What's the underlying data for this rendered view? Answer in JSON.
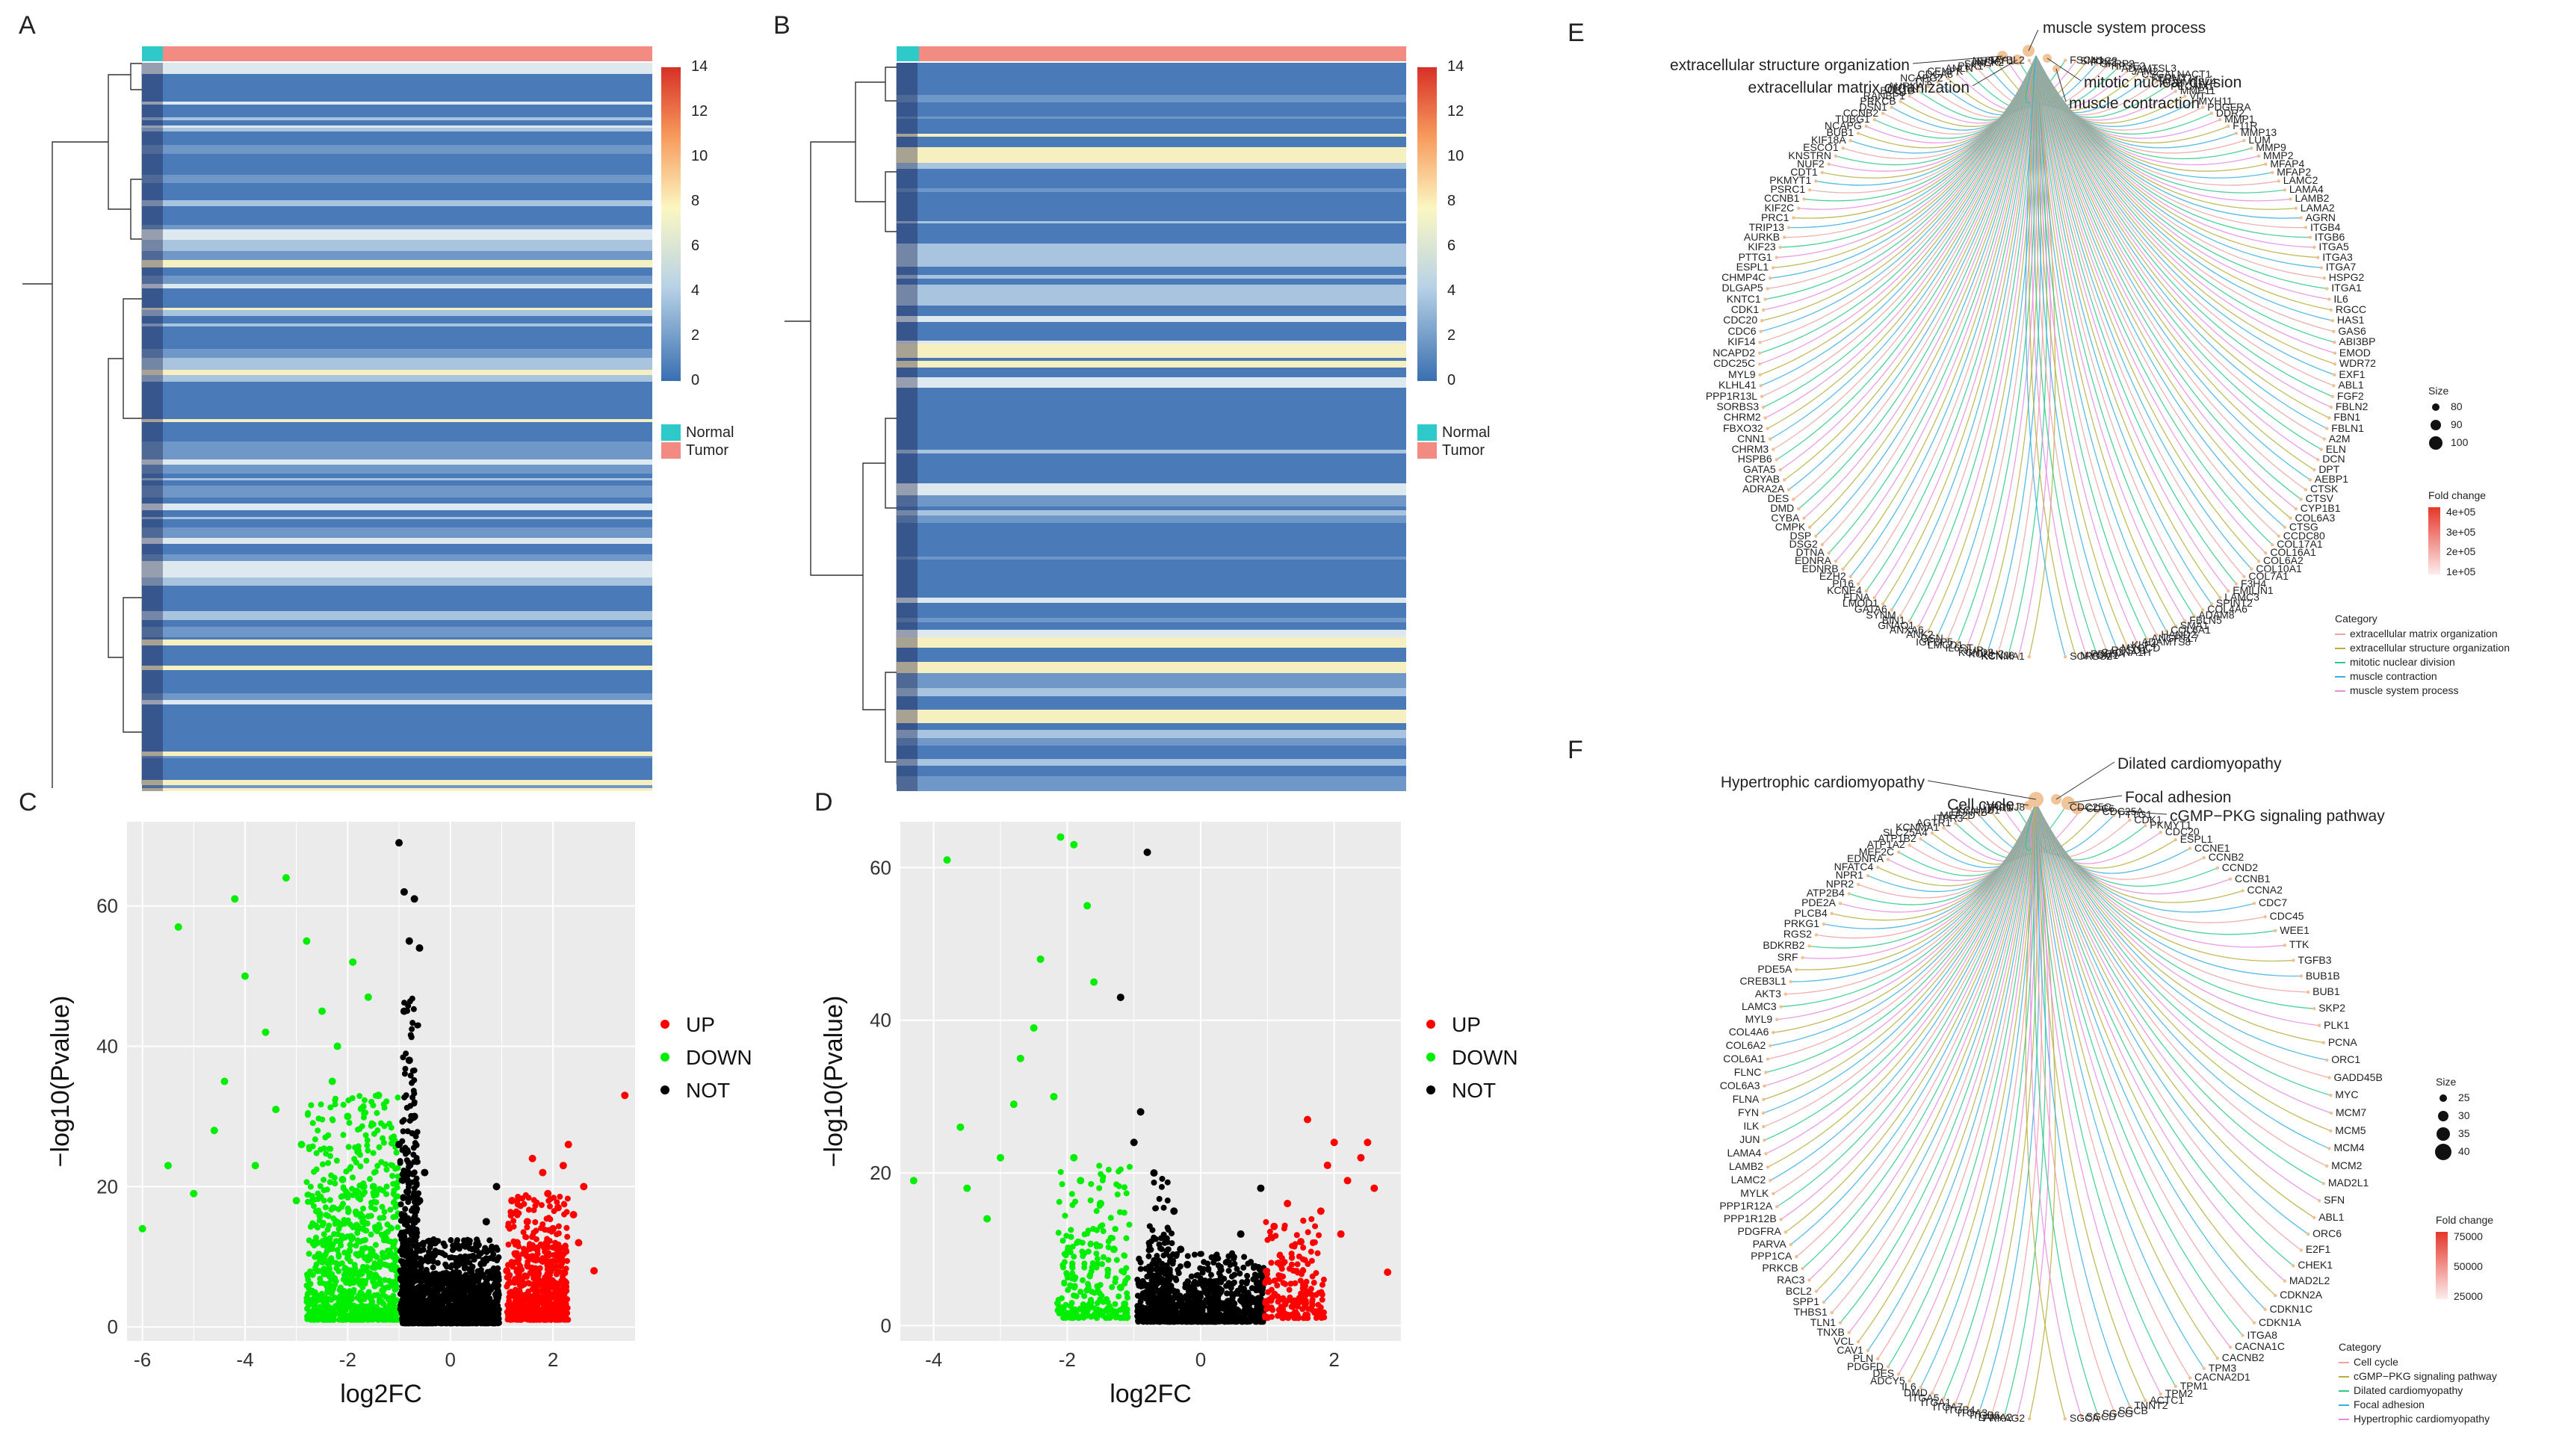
{
  "panel_labels": {
    "a": "A",
    "b": "B",
    "c": "C",
    "d": "D",
    "e": "E",
    "f": "F"
  },
  "heatmap": {
    "colorbar_ticks": [
      "14",
      "12",
      "10",
      "8",
      "6",
      "4",
      "2",
      "0"
    ],
    "colorbar_range": [
      0,
      14
    ],
    "legend": [
      {
        "label": "Normal",
        "color": "#2ec9c9"
      },
      {
        "label": "Tumor",
        "color": "#f28b82"
      }
    ],
    "colors": {
      "low": "#3a6fb0",
      "mid": "#fbf7c2",
      "high": "#d73027",
      "normal": "#2ec9c9",
      "tumor": "#f28b82"
    }
  },
  "volcano_legend": [
    {
      "label": "UP",
      "color": "#ff0000"
    },
    {
      "label": "DOWN",
      "color": "#00ee00"
    },
    {
      "label": "NOT",
      "color": "#000000"
    }
  ],
  "chart_data": [
    {
      "type": "scatter",
      "panel": "C",
      "title": "",
      "xlabel": "log2FC",
      "ylabel": "−log10(Pvalue)",
      "xlim": [
        -6.3,
        3.6
      ],
      "ylim": [
        -2,
        72
      ],
      "xticks": [
        "-6",
        "-4",
        "-2",
        "0",
        "2"
      ],
      "xtick_values": [
        -6,
        -4,
        -2,
        0,
        2
      ],
      "yticks": [
        "0",
        "20",
        "40",
        "60"
      ],
      "ytick_values": [
        0,
        20,
        40,
        60
      ],
      "series": [
        {
          "name": "UP",
          "points": [
            [
              3.4,
              33
            ],
            [
              2.2,
              23
            ],
            [
              1.9,
              19
            ],
            [
              2.5,
              12
            ],
            [
              2.0,
              14
            ],
            [
              1.6,
              10
            ],
            [
              1.4,
              6
            ],
            [
              2.8,
              8
            ],
            [
              2.3,
              26
            ],
            [
              1.8,
              22
            ],
            [
              1.2,
              18
            ],
            [
              1.5,
              15
            ],
            [
              1.3,
              12
            ],
            [
              1.1,
              8
            ],
            [
              1.7,
              5
            ],
            [
              2.6,
              20
            ],
            [
              2.1,
              17
            ],
            [
              1.9,
              9
            ],
            [
              1.6,
              24
            ],
            [
              2.4,
              16
            ]
          ]
        },
        {
          "name": "DOWN",
          "points": [
            [
              -6.0,
              14
            ],
            [
              -5.3,
              57
            ],
            [
              -5.0,
              19
            ],
            [
              -4.2,
              61
            ],
            [
              -4.0,
              50
            ],
            [
              -3.6,
              42
            ],
            [
              -3.2,
              64
            ],
            [
              -2.8,
              55
            ],
            [
              -2.5,
              45
            ],
            [
              -2.2,
              40
            ],
            [
              -2.0,
              30
            ],
            [
              -1.8,
              25
            ],
            [
              -1.5,
              20
            ],
            [
              -1.3,
              10
            ],
            [
              -4.6,
              28
            ],
            [
              -3.8,
              23
            ],
            [
              -3.0,
              18
            ],
            [
              -2.6,
              12
            ],
            [
              -1.9,
              52
            ],
            [
              -1.6,
              47
            ],
            [
              -2.3,
              35
            ],
            [
              -1.7,
              15
            ],
            [
              -1.2,
              4
            ],
            [
              -5.5,
              23
            ],
            [
              -4.4,
              35
            ],
            [
              -3.4,
              31
            ],
            [
              -2.9,
              26
            ],
            [
              -2.1,
              21
            ],
            [
              -1.4,
              33
            ],
            [
              -1.1,
              2
            ]
          ]
        },
        {
          "name": "NOT",
          "points": [
            [
              -1.0,
              69
            ],
            [
              -0.9,
              62
            ],
            [
              -0.7,
              61
            ],
            [
              -0.8,
              55
            ],
            [
              -0.6,
              54
            ],
            [
              -0.9,
              45
            ],
            [
              -0.8,
              38
            ],
            [
              -0.7,
              30
            ],
            [
              -0.5,
              22
            ],
            [
              -0.3,
              12
            ],
            [
              0.0,
              3
            ],
            [
              0.4,
              8
            ],
            [
              0.7,
              15
            ],
            [
              0.9,
              20
            ],
            [
              0.5,
              2
            ],
            [
              -0.2,
              1
            ],
            [
              0.2,
              5
            ],
            [
              -0.6,
              18
            ],
            [
              -1.0,
              26
            ],
            [
              0.8,
              11
            ]
          ]
        }
      ]
    },
    {
      "type": "scatter",
      "panel": "D",
      "title": "",
      "xlabel": "log2FC",
      "ylabel": "−log10(Pvalue)",
      "xlim": [
        -4.5,
        3.0
      ],
      "ylim": [
        -2,
        66
      ],
      "xticks": [
        "-4",
        "-2",
        "0",
        "2"
      ],
      "xtick_values": [
        -4,
        -2,
        0,
        2
      ],
      "yticks": [
        "0",
        "20",
        "40",
        "60"
      ],
      "ytick_values": [
        0,
        20,
        40,
        60
      ],
      "series": [
        {
          "name": "UP",
          "points": [
            [
              2.8,
              7
            ],
            [
              2.6,
              18
            ],
            [
              2.4,
              22
            ],
            [
              2.2,
              19
            ],
            [
              2.0,
              24
            ],
            [
              1.8,
              15
            ],
            [
              1.5,
              11
            ],
            [
              1.2,
              8
            ],
            [
              2.1,
              12
            ],
            [
              1.6,
              27
            ],
            [
              1.3,
              16
            ],
            [
              1.0,
              6
            ],
            [
              2.5,
              24
            ],
            [
              1.9,
              21
            ],
            [
              1.1,
              13
            ]
          ]
        },
        {
          "name": "DOWN",
          "points": [
            [
              -4.3,
              19
            ],
            [
              -3.8,
              61
            ],
            [
              -3.5,
              18
            ],
            [
              -3.0,
              22
            ],
            [
              -2.7,
              35
            ],
            [
              -2.4,
              48
            ],
            [
              -2.1,
              64
            ],
            [
              -1.9,
              63
            ],
            [
              -1.7,
              55
            ],
            [
              -1.6,
              45
            ],
            [
              -2.2,
              30
            ],
            [
              -1.9,
              22
            ],
            [
              -1.5,
              16
            ],
            [
              -1.3,
              10
            ],
            [
              -1.2,
              5
            ],
            [
              -3.6,
              26
            ],
            [
              -3.2,
              14
            ],
            [
              -2.8,
              29
            ],
            [
              -2.5,
              39
            ],
            [
              -1.8,
              19
            ]
          ]
        },
        {
          "name": "NOT",
          "points": [
            [
              -0.8,
              62
            ],
            [
              -1.2,
              43
            ],
            [
              -0.9,
              28
            ],
            [
              -0.7,
              20
            ],
            [
              -0.4,
              15
            ],
            [
              -0.2,
              8
            ],
            [
              0.0,
              3
            ],
            [
              0.3,
              6
            ],
            [
              0.6,
              12
            ],
            [
              0.9,
              18
            ],
            [
              0.4,
              1
            ],
            [
              -0.5,
              2
            ],
            [
              -1.0,
              24
            ],
            [
              0.7,
              4
            ],
            [
              -0.3,
              10
            ]
          ]
        }
      ]
    }
  ],
  "network_e": {
    "categories": [
      "extracellular structure organization",
      "muscle system process",
      "extracellular matrix organization",
      "mitotic nuclear division",
      "muscle contraction"
    ],
    "genes_left": [
      "MYBL2",
      "NUSAP1",
      "NEK2",
      "SIRT7",
      "PLK1",
      "ANLN",
      "CENPK",
      "CDCA8",
      "NCAPG2",
      "TTK",
      "AURKA",
      "BUB1B",
      "RANBP1",
      "PRKCB",
      "DSN1",
      "CCNB2",
      "TUBG1",
      "NCAPG",
      "BUB1",
      "KIF18A",
      "ESCO1",
      "KNSTRN",
      "NUF2",
      "CDT1",
      "PKMYT1",
      "PSRC1",
      "CCNB1",
      "KIF2C",
      "PRC1",
      "TRIP13",
      "AURKB",
      "KIF23",
      "PTTG1",
      "ESPL1",
      "CHMP4C",
      "DLGAP5",
      "KNTC1",
      "CDK1",
      "CDC20",
      "CDC6",
      "KIF14",
      "NCAPD2",
      "CDC25C",
      "MYL9",
      "KLHL41",
      "PPP1R13L",
      "SORBS3",
      "CHRM2",
      "FBXO32",
      "CNN1",
      "CHRM3",
      "HSPB6",
      "GATA5",
      "CRYAB",
      "ADRA2A",
      "DES",
      "DMD",
      "CYBA",
      "CMPK",
      "DSP",
      "DSG2",
      "DTNA",
      "EDNRA",
      "EDNRB",
      "EZH2",
      "PI16",
      "KCNE4",
      "FLNA",
      "LMOD1",
      "GATA6",
      "SYNM",
      "BIN1",
      "GNAO1",
      "ANXA6",
      "ANK2",
      "GSN",
      "IGFBP5",
      "LMCD1",
      "IL6ST",
      "JUP",
      "KCND3",
      "KCNH2",
      "KCNJ8",
      "KCNMA1"
    ],
    "genes_right": [
      "FSCN1",
      "SMOC2",
      "PTX3",
      "SFRP2",
      "HPSE2",
      "ADAMTSL3",
      "JAM2",
      "CSGALNACT1",
      "FERMT1",
      "ADAMTSL4",
      "PECAM1",
      "MMP11",
      "VIT",
      "MYH11",
      "PDGFRA",
      "DDR2",
      "MMP1",
      "F11R",
      "MMP13",
      "LUM",
      "MMP9",
      "MMP2",
      "MFAP4",
      "MFAP2",
      "LAMC2",
      "LAMA4",
      "LAMB2",
      "LAMA2",
      "AGRN",
      "ITGB4",
      "ITGB6",
      "ITGA5",
      "ITGA3",
      "ITGA7",
      "HSPG2",
      "ITGA1",
      "IL6",
      "RGCC",
      "HAS1",
      "GAS6",
      "ABI3BP",
      "EMOD",
      "WDR72",
      "EXF1",
      "ABL1",
      "FGF2",
      "FBLN2",
      "FBN1",
      "FBLN1",
      "A2M",
      "ELN",
      "DCN",
      "DPT",
      "AEBP1",
      "CTSK",
      "CTSV",
      "CYP1B1",
      "COL6A3",
      "CTSG",
      "CCDC80",
      "COL17A1",
      "COL16A1",
      "COL6A2",
      "COL10A1",
      "COL7A1",
      "F3H4",
      "EMILIN1",
      "LAMC3",
      "SPINT2",
      "COL4A6",
      "ADAM8",
      "FBLN5",
      "SMA1",
      "COL6A1",
      "HAND2",
      "ANGPTL7",
      "ADAMTS8",
      "KLF4",
      "MYOCD",
      "RCSD1",
      "CACNA1H",
      "PDE5A",
      "MYOM1",
      "SORBS2"
    ],
    "size_legend": {
      "title": "Size",
      "labels": [
        "80",
        "90",
        "100"
      ]
    },
    "fold_legend": {
      "title": "Fold change",
      "labels": [
        "4e+05",
        "3e+05",
        "2e+05",
        "1e+05"
      ]
    },
    "category_legend": {
      "title": "Category",
      "items": [
        {
          "label": "extracellular matrix organization",
          "color": "#e8a5a0"
        },
        {
          "label": "extracellular structure organization",
          "color": "#b5b040"
        },
        {
          "label": "mitotic nuclear division",
          "color": "#2ec98a"
        },
        {
          "label": "muscle contraction",
          "color": "#3ab0e0"
        },
        {
          "label": "muscle system process",
          "color": "#e88ce0"
        }
      ]
    }
  },
  "network_f": {
    "categories": [
      "Hypertrophic cardiomyopathy",
      "Dilated cardiomyopathy",
      "Cell cycle",
      "Focal adhesion",
      "cGMP−PKG signaling pathway"
    ],
    "genes_left": [
      "KCNJ8",
      "ITPR1",
      "KCNMB1",
      "EDNRB",
      "MEF2D",
      "ITPR3",
      "AGTR1",
      "KCNMA1",
      "SLC25A4",
      "ATP1B2",
      "ATP1A2",
      "MEF2C",
      "EDNRA",
      "NFATC4",
      "NPR1",
      "NPR2",
      "ATP2B4",
      "PDE2A",
      "PLCB4",
      "PRKG1",
      "RGS2",
      "BDKRB2",
      "SRF",
      "PDE5A",
      "CREB3L1",
      "AKT3",
      "LAMC3",
      "MYL9",
      "COL4A6",
      "COL6A2",
      "COL6A1",
      "FLNC",
      "COL6A3",
      "FLNA",
      "FYN",
      "ILK",
      "JUN",
      "LAMA4",
      "LAMB2",
      "LAMC2",
      "MYLK",
      "PPP1R12A",
      "PPP1R12B",
      "PDGFRA",
      "PARVA",
      "PPP1CA",
      "PRKCB",
      "RAC3",
      "BCL2",
      "SPP1",
      "THBS1",
      "TLN1",
      "TNXB",
      "VCL",
      "CAV1",
      "PLN",
      "PDGFD",
      "DES",
      "ADCY5",
      "IL6",
      "DMD",
      "ITGA5",
      "ITGA1",
      "ITGA7",
      "ITGB4",
      "ITGA3",
      "ITGB6",
      "LAMA2",
      "PRKAG2"
    ],
    "genes_right": [
      "CDC25C",
      "CDC6",
      "CDC25A",
      "PTTG1",
      "CDK1",
      "PKMYT1",
      "CDC20",
      "ESPL1",
      "CCNE1",
      "CCNB2",
      "CCND2",
      "CCNB1",
      "CCNA2",
      "CDC7",
      "CDC45",
      "WEE1",
      "TTK",
      "TGFB3",
      "BUB1B",
      "BUB1",
      "SKP2",
      "PLK1",
      "PCNA",
      "ORC1",
      "GADD45B",
      "MYC",
      "MCM7",
      "MCM5",
      "MCM4",
      "MCM2",
      "MAD2L1",
      "SFN",
      "ABL1",
      "ORC6",
      "E2F1",
      "CHEK1",
      "MAD2L2",
      "CDKN2A",
      "CDKN1C",
      "CDKN1A",
      "ITGA8",
      "CACNA1C",
      "CACNB2",
      "TPM3",
      "CACNA2D1",
      "TPM1",
      "TPM2",
      "ACTC1",
      "TNNT2",
      "SGCB",
      "SGCG",
      "SGCD",
      "SGCA"
    ],
    "size_legend": {
      "title": "Size",
      "labels": [
        "25",
        "30",
        "35",
        "40"
      ]
    },
    "fold_legend": {
      "title": "Fold change",
      "labels": [
        "75000",
        "50000",
        "25000"
      ]
    },
    "category_legend": {
      "title": "Category",
      "items": [
        {
          "label": "Cell cycle",
          "color": "#f0a0a0"
        },
        {
          "label": "cGMP−PKG signaling pathway",
          "color": "#b5b040"
        },
        {
          "label": "Dilated cardiomyopathy",
          "color": "#2ec98a"
        },
        {
          "label": "Focal adhesion",
          "color": "#3ab0e0"
        },
        {
          "label": "Hypertrophic cardiomyopathy",
          "color": "#e88ce0"
        }
      ]
    }
  }
}
